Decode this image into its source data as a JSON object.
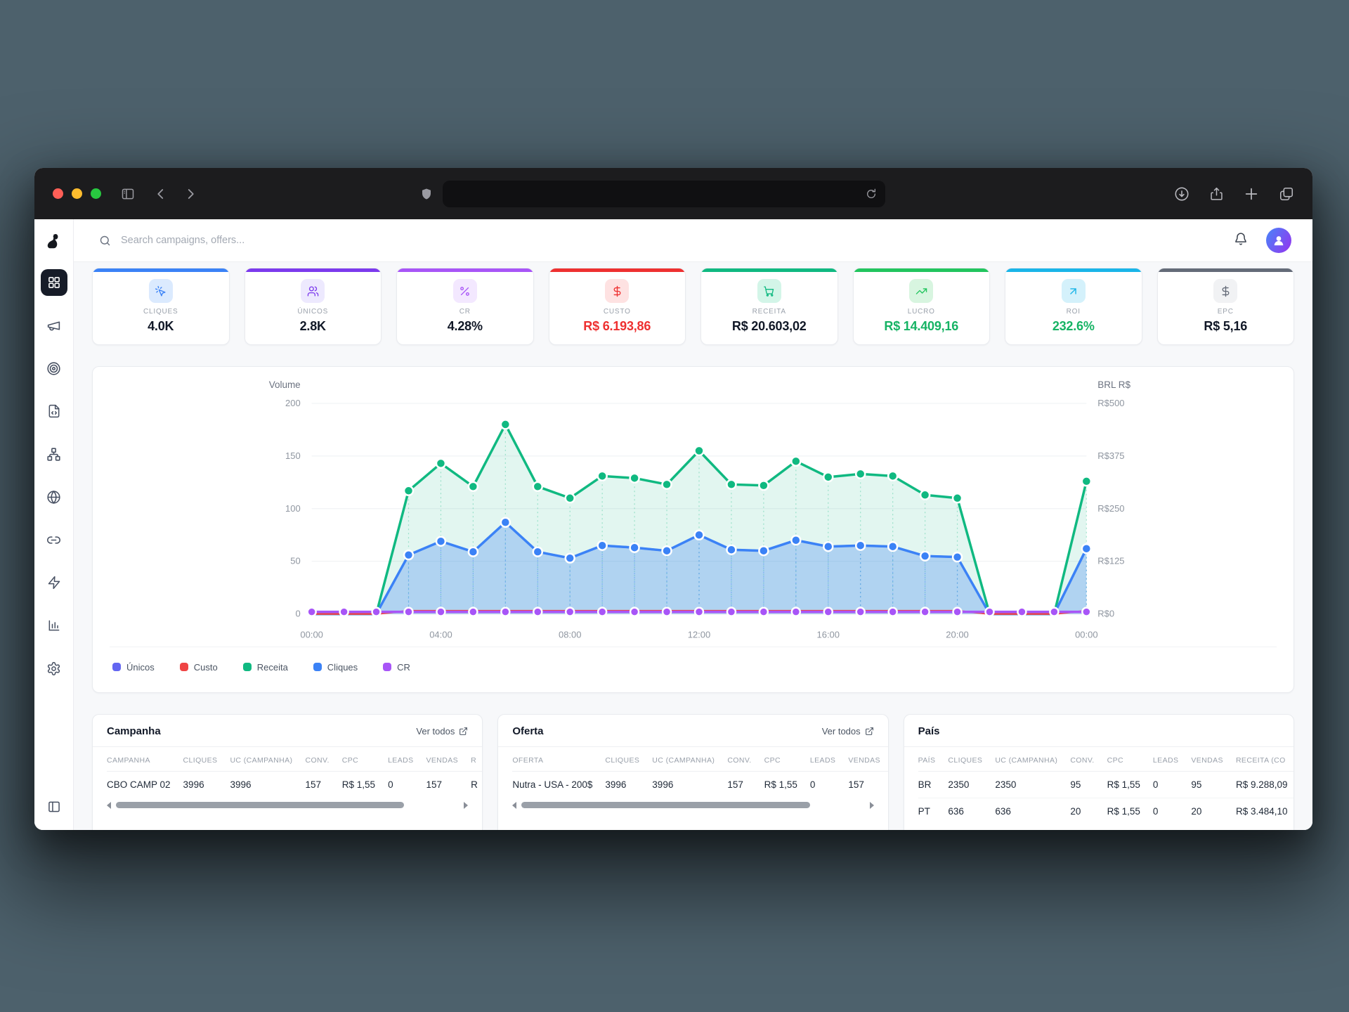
{
  "browser": {
    "url_value": ""
  },
  "header": {
    "search_placeholder": "Search campaigns, offers..."
  },
  "sidebar": {
    "items": [
      "dashboard",
      "campaigns",
      "offers",
      "landers",
      "flows",
      "domains",
      "links",
      "automations",
      "reports",
      "settings"
    ],
    "active": "dashboard"
  },
  "stats": [
    {
      "label": "CLIQUES",
      "value": "4.0K",
      "icon": "cursor-click-icon",
      "accent": "#3b82f6",
      "icon_bg": "#dbeafe",
      "value_color": "#111827"
    },
    {
      "label": "ÚNICOS",
      "value": "2.8K",
      "icon": "users-icon",
      "accent": "#7c3aed",
      "icon_bg": "#ede9fe",
      "value_color": "#111827"
    },
    {
      "label": "CR",
      "value": "4.28%",
      "icon": "percent-icon",
      "accent": "#a855f7",
      "icon_bg": "#f3e8ff",
      "value_color": "#111827"
    },
    {
      "label": "CUSTO",
      "value": "R$ 6.193,86",
      "icon": "dollar-icon",
      "accent": "#ee3030",
      "icon_bg": "#fee2e2",
      "value_color": "#ee3030"
    },
    {
      "label": "RECEITA",
      "value": "R$ 20.603,02",
      "icon": "cart-icon",
      "accent": "#10b981",
      "icon_bg": "#d3f5e8",
      "value_color": "#111827"
    },
    {
      "label": "LUCRO",
      "value": "R$ 14.409,16",
      "icon": "trending-up-icon",
      "accent": "#22c55e",
      "icon_bg": "#d8f5e0",
      "value_color": "#16b364"
    },
    {
      "label": "ROI",
      "value": "232.6%",
      "icon": "arrow-up-right-icon",
      "accent": "#1ab5e8",
      "icon_bg": "#d4f1fb",
      "value_color": "#16b364"
    },
    {
      "label": "EPC",
      "value": "R$ 5,16",
      "icon": "dollar-icon",
      "accent": "#646b78",
      "icon_bg": "#f1f2f4",
      "value_color": "#111827"
    }
  ],
  "chart_data": {
    "type": "line",
    "x_tick_labels": [
      "00:00",
      "04:00",
      "08:00",
      "12:00",
      "16:00",
      "20:00",
      "00:00"
    ],
    "points_per_hour": 1,
    "left_axis": {
      "title": "Volume",
      "ticks": [
        0,
        50,
        100,
        150,
        200
      ],
      "range": [
        0,
        200
      ]
    },
    "right_axis": {
      "title": "BRL R$",
      "ticks": [
        "R$0",
        "R$125",
        "R$250",
        "R$375",
        "R$500"
      ],
      "range": [
        0,
        500
      ]
    },
    "grid": true,
    "legend_position": "bottom-left",
    "series": [
      {
        "name": "Únicos",
        "color": "#6366f1",
        "values": [
          0,
          0,
          0,
          56,
          69,
          59,
          87,
          59,
          53,
          65,
          63,
          60,
          75,
          61,
          60,
          70,
          64,
          65,
          64,
          55,
          54,
          0,
          0,
          0,
          62
        ]
      },
      {
        "name": "Custo",
        "color": "#ef4444",
        "values": [
          0,
          0,
          0,
          3,
          3,
          3,
          3,
          3,
          3,
          3,
          3,
          3,
          3,
          3,
          3,
          3,
          3,
          3,
          3,
          3,
          3,
          0,
          0,
          0,
          3
        ]
      },
      {
        "name": "Receita",
        "color": "#10b981",
        "values": [
          0,
          0,
          0,
          117,
          143,
          121,
          180,
          121,
          110,
          131,
          129,
          123,
          155,
          123,
          122,
          145,
          130,
          133,
          131,
          113,
          110,
          0,
          0,
          0,
          126
        ]
      },
      {
        "name": "Cliques",
        "color": "#3b82f6",
        "values": [
          0,
          0,
          0,
          56,
          69,
          59,
          87,
          59,
          53,
          65,
          63,
          60,
          75,
          61,
          60,
          70,
          64,
          65,
          64,
          55,
          54,
          0,
          0,
          0,
          62
        ]
      },
      {
        "name": "CR",
        "color": "#a855f7",
        "values": [
          2,
          2,
          2,
          2,
          2,
          2,
          2,
          2,
          2,
          2,
          2,
          2,
          2,
          2,
          2,
          2,
          2,
          2,
          2,
          2,
          2,
          2,
          2,
          2,
          2
        ]
      }
    ],
    "legend": [
      {
        "label": "Únicos",
        "color": "#6366f1"
      },
      {
        "label": "Custo",
        "color": "#ef4444"
      },
      {
        "label": "Receita",
        "color": "#10b981"
      },
      {
        "label": "Cliques",
        "color": "#3b82f6"
      },
      {
        "label": "CR",
        "color": "#a855f7"
      }
    ]
  },
  "tables": [
    {
      "title": "Campanha",
      "link_label": "Ver todos",
      "headers": [
        "CAMPANHA",
        "CLIQUES",
        "UC (CAMPANHA)",
        "CONV.",
        "CPC",
        "LEADS",
        "VENDAS",
        "R"
      ],
      "rows": [
        [
          "CBO CAMP 02",
          "3996",
          "3996",
          "157",
          "R$ 1,55",
          "0",
          "157",
          "R"
        ]
      ]
    },
    {
      "title": "Oferta",
      "link_label": "Ver todos",
      "headers": [
        "OFERTA",
        "CLIQUES",
        "UC (CAMPANHA)",
        "CONV.",
        "CPC",
        "LEADS",
        "VENDAS"
      ],
      "rows": [
        [
          "Nutra - USA - 200$",
          "3996",
          "3996",
          "157",
          "R$ 1,55",
          "0",
          "157"
        ]
      ]
    },
    {
      "title": "País",
      "link_label": "",
      "headers": [
        "PAÍS",
        "CLIQUES",
        "UC (CAMPANHA)",
        "CONV.",
        "CPC",
        "LEADS",
        "VENDAS",
        "RECEITA (CO"
      ],
      "rows": [
        [
          "BR",
          "2350",
          "2350",
          "95",
          "R$ 1,55",
          "0",
          "95",
          "R$ 9.288,09"
        ],
        [
          "PT",
          "636",
          "636",
          "20",
          "R$ 1,55",
          "0",
          "20",
          "R$ 3.484,10"
        ]
      ]
    }
  ]
}
